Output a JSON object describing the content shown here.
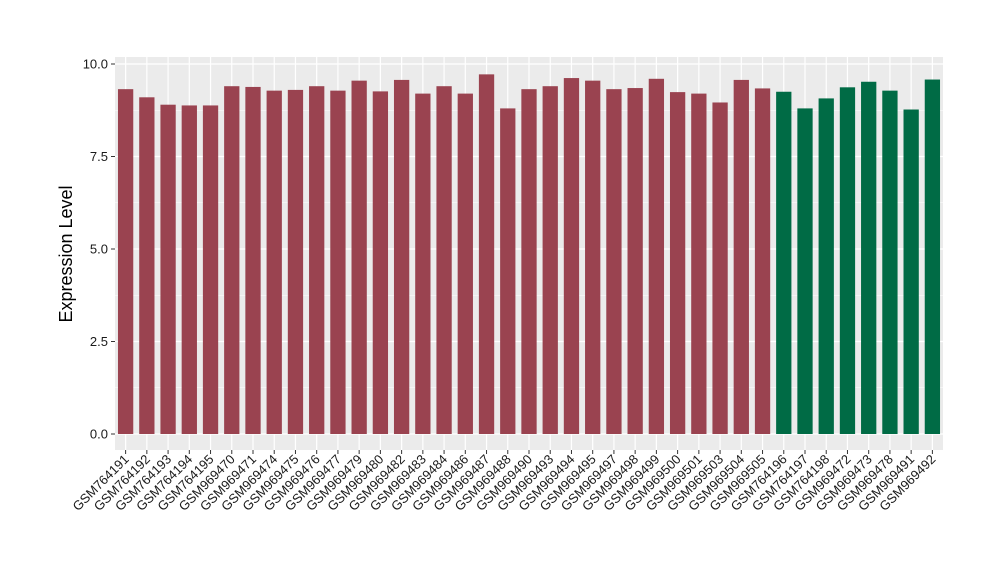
{
  "chart_data": {
    "type": "bar",
    "ylabel": "Expression Level",
    "xlabel": "",
    "ylim": [
      0,
      10
    ],
    "yticks": [
      "0.0",
      "2.5",
      "5.0",
      "7.5",
      "10.0"
    ],
    "grid": true,
    "categories": [
      "GSM764191",
      "GSM764192",
      "GSM764193",
      "GSM764194",
      "GSM764195",
      "GSM969470",
      "GSM969471",
      "GSM969474",
      "GSM969475",
      "GSM969476",
      "GSM969477",
      "GSM969479",
      "GSM969480",
      "GSM969482",
      "GSM969483",
      "GSM969484",
      "GSM969486",
      "GSM969487",
      "GSM969488",
      "GSM969490",
      "GSM969493",
      "GSM969494",
      "GSM969495",
      "GSM969497",
      "GSM969498",
      "GSM969499",
      "GSM969500",
      "GSM969501",
      "GSM969503",
      "GSM969504",
      "GSM969505",
      "GSM764196",
      "GSM764197",
      "GSM764198",
      "GSM969472",
      "GSM969473",
      "GSM969478",
      "GSM969491",
      "GSM969492"
    ],
    "values": [
      9.32,
      9.1,
      8.9,
      8.88,
      8.88,
      9.4,
      9.38,
      9.28,
      9.3,
      9.4,
      9.28,
      9.55,
      9.26,
      9.57,
      9.2,
      9.4,
      9.2,
      9.72,
      8.8,
      9.32,
      9.4,
      9.62,
      9.55,
      9.32,
      9.35,
      9.6,
      9.24,
      9.2,
      8.96,
      9.57,
      9.34,
      9.25,
      8.8,
      9.07,
      9.37,
      9.52,
      9.28,
      8.77,
      9.58
    ],
    "groups": [
      0,
      0,
      0,
      0,
      0,
      0,
      0,
      0,
      0,
      0,
      0,
      0,
      0,
      0,
      0,
      0,
      0,
      0,
      0,
      0,
      0,
      0,
      0,
      0,
      0,
      0,
      0,
      0,
      0,
      0,
      0,
      1,
      1,
      1,
      1,
      1,
      1,
      1,
      1
    ],
    "colors": [
      "#9a4350",
      "#006b45"
    ],
    "panel_bg": "#ebebeb",
    "grid_color": "#ffffff"
  }
}
